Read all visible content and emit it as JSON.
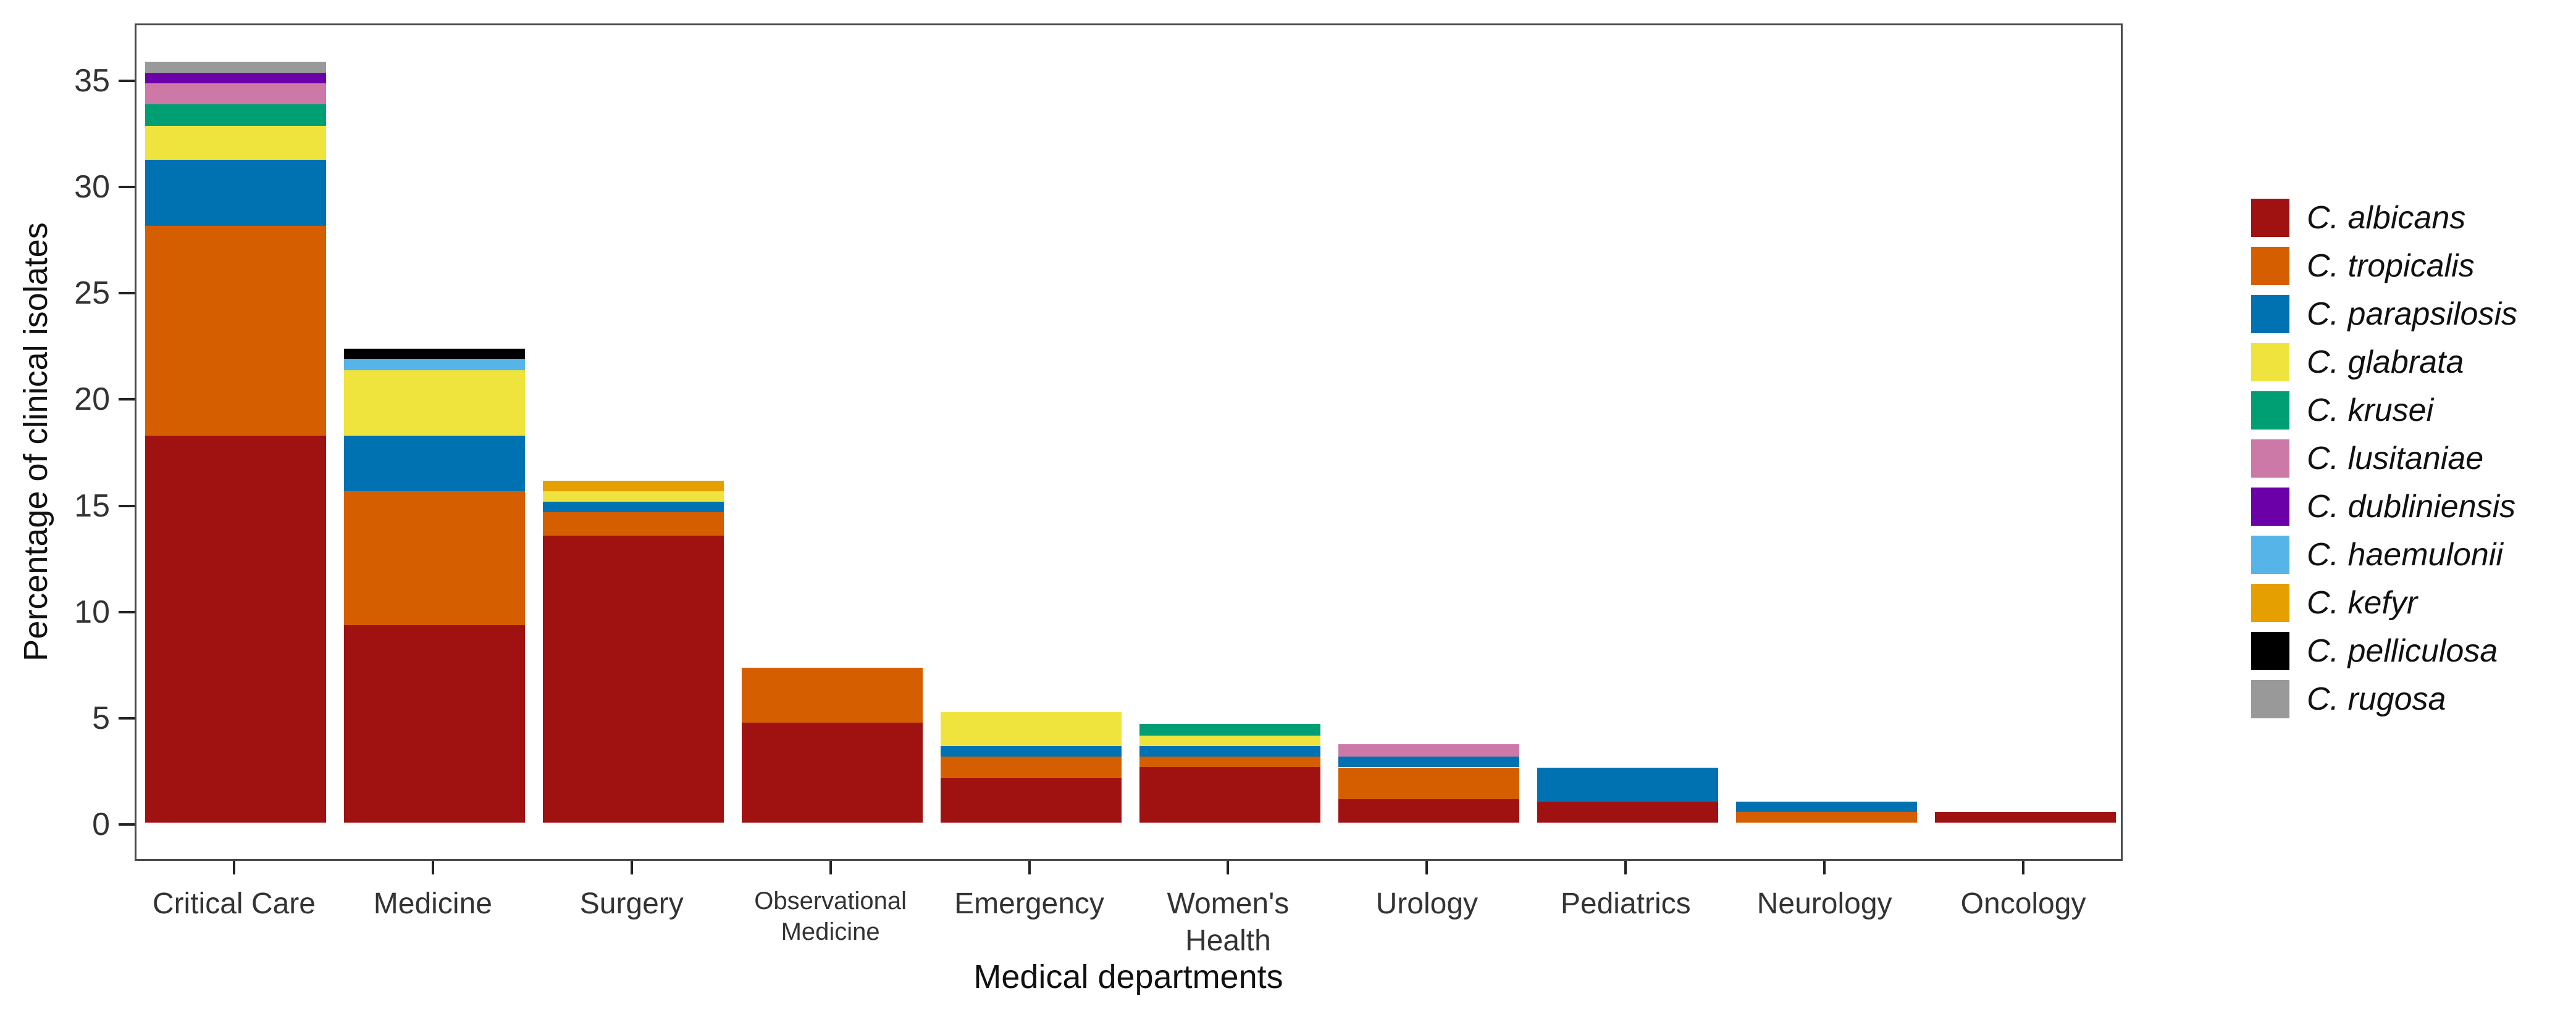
{
  "figure": {
    "y_axis_title": "Percentage of clinical isolates",
    "x_axis_title": "Medical departments"
  },
  "chart_data": {
    "type": "bar",
    "stacked": true,
    "title": "",
    "xlabel": "Medical departments",
    "ylabel": "Percentage of clinical isolates",
    "ylim": [
      0,
      37.7
    ],
    "yticks": [
      0,
      5,
      10,
      15,
      20,
      25,
      30,
      35
    ],
    "grid": false,
    "legend_position": "right",
    "background": "#ffffff",
    "panel_border_color": "#4a4a4a",
    "categories": [
      "Critical Care",
      "Medicine",
      "Surgery",
      "Observational\nMedicine",
      "Emergency",
      "Women's\nHealth",
      "Urology",
      "Pediatrics",
      "Neurology",
      "Oncology"
    ],
    "small_tick_indices": [
      3
    ],
    "series": [
      {
        "name": "C. albicans",
        "color": "#A01212",
        "values": [
          18.2,
          9.3,
          13.5,
          4.7,
          2.1,
          2.6,
          1.1,
          1.0,
          0,
          0.5
        ]
      },
      {
        "name": "C. tropicalis",
        "color": "#D55E00",
        "values": [
          9.9,
          6.3,
          1.1,
          2.6,
          1.0,
          0.5,
          1.5,
          0,
          0.5,
          0
        ]
      },
      {
        "name": "C. parapsilosis",
        "color": "#0072B2",
        "values": [
          3.1,
          2.6,
          0.5,
          0,
          0.5,
          0.5,
          0.5,
          1.6,
          0.5,
          0
        ]
      },
      {
        "name": "C. glabrata",
        "color": "#EFE33E",
        "values": [
          1.6,
          3.1,
          0.5,
          0,
          1.6,
          0.5,
          0,
          0,
          0,
          0
        ]
      },
      {
        "name": "C. krusei",
        "color": "#009E73",
        "values": [
          1.0,
          0,
          0,
          0,
          0,
          0.55,
          0,
          0,
          0,
          0
        ]
      },
      {
        "name": "C. lusitaniae",
        "color": "#CC79A7",
        "values": [
          1.0,
          0,
          0,
          0,
          0,
          0,
          0.6,
          0,
          0,
          0
        ]
      },
      {
        "name": "C. dubliniensis",
        "color": "#6B00A8",
        "values": [
          0.5,
          0,
          0,
          0,
          0,
          0,
          0,
          0,
          0,
          0
        ]
      },
      {
        "name": "C. haemulonii",
        "color": "#56B4E9",
        "values": [
          0,
          0.5,
          0,
          0,
          0,
          0,
          0,
          0,
          0,
          0
        ]
      },
      {
        "name": "C. kefyr",
        "color": "#E69F00",
        "values": [
          0,
          0,
          0.5,
          0,
          0,
          0,
          0,
          0,
          0,
          0
        ]
      },
      {
        "name": "C. pelliculosa",
        "color": "#000000",
        "values": [
          0,
          0.5,
          0,
          0,
          0,
          0,
          0,
          0,
          0,
          0
        ]
      },
      {
        "name": "C. rugosa",
        "color": "#999999",
        "values": [
          0.5,
          0,
          0,
          0,
          0,
          0,
          0,
          0,
          0,
          0
        ]
      }
    ]
  }
}
